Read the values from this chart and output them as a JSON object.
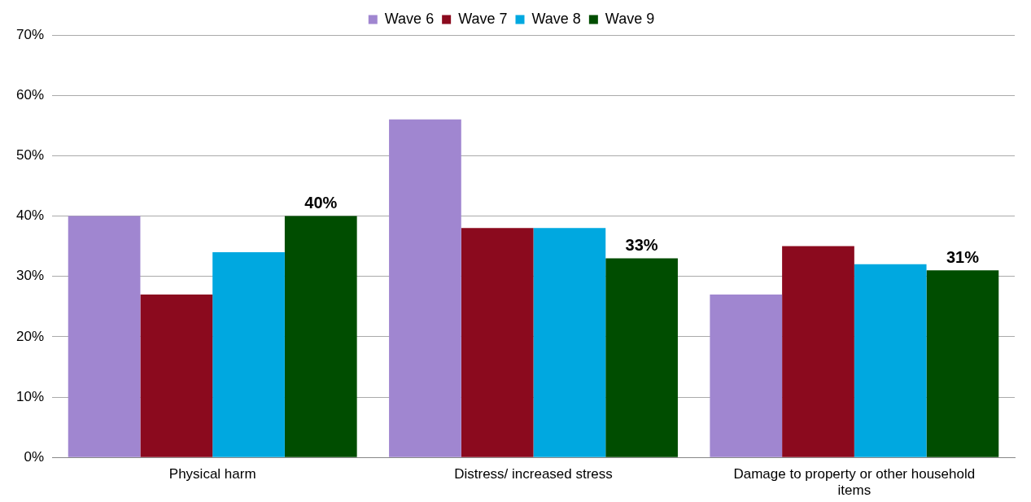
{
  "chart_data": {
    "type": "bar",
    "categories": [
      "Physical harm",
      "Distress/ increased stress",
      "Damage to property or other household items"
    ],
    "series": [
      {
        "name": "Wave 6",
        "color": "#a086d0",
        "values": [
          40,
          56,
          27
        ]
      },
      {
        "name": "Wave 7",
        "color": "#8b0a1e",
        "values": [
          27,
          38,
          35
        ]
      },
      {
        "name": "Wave 8",
        "color": "#00a8e0",
        "values": [
          34,
          38,
          32
        ]
      },
      {
        "name": "Wave 9",
        "color": "#004d00",
        "values": [
          40,
          33,
          31
        ],
        "value_labels": [
          "40%",
          "33%",
          "31%"
        ]
      }
    ],
    "ylim": [
      0,
      70
    ],
    "yticks": [
      {
        "value": 0,
        "label": "0%"
      },
      {
        "value": 10,
        "label": "10%"
      },
      {
        "value": 20,
        "label": "20%"
      },
      {
        "value": 30,
        "label": "30%"
      },
      {
        "value": 40,
        "label": "40%"
      },
      {
        "value": 50,
        "label": "50%"
      },
      {
        "value": 60,
        "label": "60%"
      },
      {
        "value": 70,
        "label": "70%"
      }
    ],
    "grid": "y",
    "legend": "top"
  }
}
